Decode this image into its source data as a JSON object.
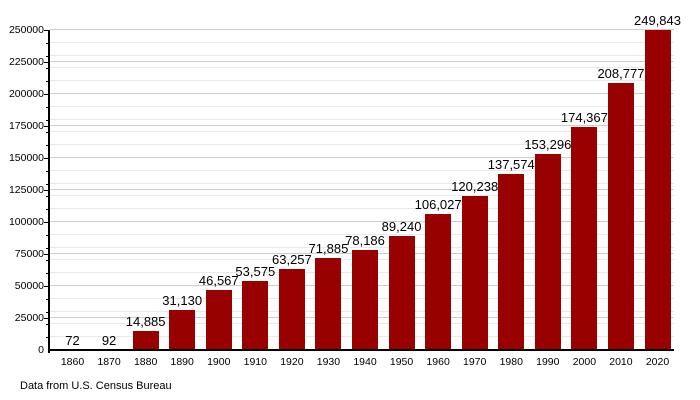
{
  "chart_data": {
    "type": "bar",
    "title": "",
    "xlabel": "",
    "ylabel": "",
    "categories": [
      "1860",
      "1870",
      "1880",
      "1890",
      "1900",
      "1910",
      "1920",
      "1930",
      "1940",
      "1950",
      "1960",
      "1970",
      "1980",
      "1990",
      "2000",
      "2010",
      "2020"
    ],
    "values": [
      72,
      92,
      14885,
      31130,
      46567,
      53575,
      63257,
      71885,
      78186,
      89240,
      106027,
      120238,
      137574,
      153296,
      174367,
      208777,
      249843
    ],
    "value_labels": [
      "72",
      "92",
      "14,885",
      "31,130",
      "46,567",
      "53,575",
      "63,257",
      "71,885",
      "78,186",
      "89,240",
      "106,027",
      "120,238",
      "137,574",
      "153,296",
      "174,367",
      "208,777",
      "249,843"
    ],
    "ylim": [
      0,
      250000
    ],
    "y_major_step": 25000,
    "y_minor_step": 10000,
    "y_tick_labels": [
      "0",
      "25000",
      "50000",
      "75000",
      "100000",
      "125000",
      "150000",
      "175000",
      "200000",
      "225000",
      "250000"
    ],
    "grid": "horizontal major+minor, no vertical gridlines",
    "legend": "none",
    "bar_color": "#990000",
    "axis_color": "#000000",
    "major_grid_color": "#cdcdcd",
    "minor_grid_color": "#e9e9e9",
    "background_color": "#ffffff"
  },
  "caption": "Data from U.S. Census Bureau"
}
